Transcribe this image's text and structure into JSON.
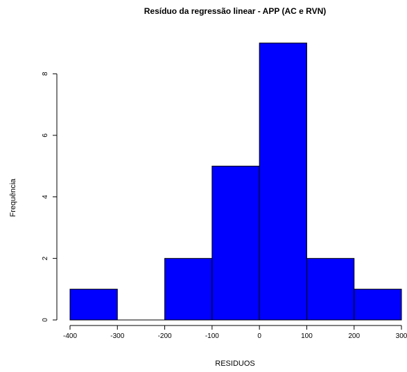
{
  "chart_data": {
    "type": "bar",
    "subtype": "histogram",
    "title": "Resíduo da regressão linear - APP (AC e RVN)",
    "xlabel": "RESIDUOS",
    "ylabel": "Frequência",
    "bins": [
      {
        "from": -400,
        "to": -300,
        "count": 1
      },
      {
        "from": -300,
        "to": -200,
        "count": 0
      },
      {
        "from": -200,
        "to": -100,
        "count": 2
      },
      {
        "from": -100,
        "to": 0,
        "count": 5
      },
      {
        "from": 0,
        "to": 100,
        "count": 9
      },
      {
        "from": 100,
        "to": 200,
        "count": 2
      },
      {
        "from": 200,
        "to": 300,
        "count": 1
      }
    ],
    "xlim": [
      -400,
      300
    ],
    "ylim": [
      0,
      9
    ],
    "x_ticks": [
      "-400",
      "-300",
      "-200",
      "-100",
      "0",
      "100",
      "200",
      "300"
    ],
    "y_ticks": [
      "0",
      "2",
      "4",
      "6",
      "8"
    ],
    "grid": false,
    "colors": {
      "bar_fill": "#0000ff",
      "bar_stroke": "#000000",
      "axis": "#000000"
    }
  }
}
